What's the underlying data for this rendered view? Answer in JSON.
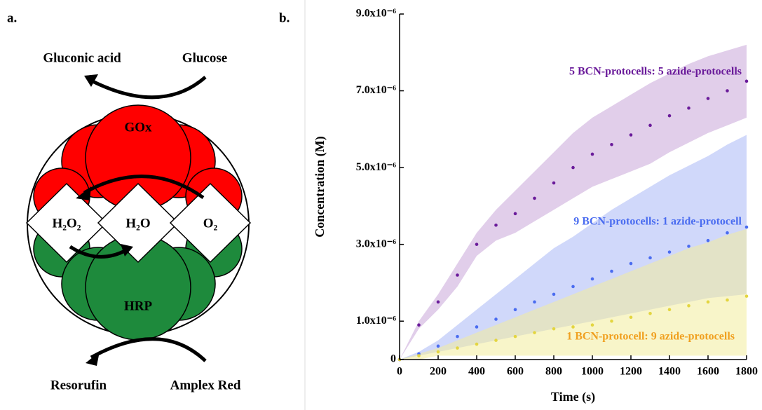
{
  "panel_a": {
    "label": "a.",
    "top_left": "Gluconic acid",
    "top_right": "Glucose",
    "enzyme_top": "GOx",
    "enzyme_bottom": "HRP",
    "species": [
      "H₂O₂",
      "H₂O",
      "O₂"
    ],
    "bottom_left": "Resorufin",
    "bottom_right": "Amplex Red"
  },
  "chart_data": {
    "type": "line",
    "panel_label": "b.",
    "x_label": "Time (s)",
    "y_label": "Concentration (M)",
    "x": [
      0,
      100,
      200,
      300,
      400,
      500,
      600,
      700,
      800,
      900,
      1000,
      1100,
      1200,
      1300,
      1400,
      1500,
      1600,
      1700,
      1800
    ],
    "xlim": [
      0,
      1800
    ],
    "xticks": [
      0,
      200,
      400,
      600,
      800,
      1000,
      1200,
      1400,
      1600,
      1800
    ],
    "ylim": [
      0,
      9e-06
    ],
    "yticks": [
      0,
      {
        "value": 1e-06,
        "label": "1.0x10⁻⁶"
      },
      {
        "value": 3e-06,
        "label": "3.0x10⁻⁶"
      },
      {
        "value": 5e-06,
        "label": "5.0x10⁻⁶"
      },
      {
        "value": 7e-06,
        "label": "7.0x10⁻⁶"
      },
      {
        "value": 9e-06,
        "label": "9.0x10⁻⁶"
      }
    ],
    "series": [
      {
        "name": "5 BCN-protocells: 5 azide-protocells",
        "color": "#6a1b9a",
        "band_color": "#c9a6d8",
        "label_color": "#6a1b9a",
        "values": [
          0,
          9e-07,
          1.5e-06,
          2.2e-06,
          3e-06,
          3.5e-06,
          3.8e-06,
          4.2e-06,
          4.6e-06,
          5e-06,
          5.35e-06,
          5.6e-06,
          5.85e-06,
          6.1e-06,
          6.35e-06,
          6.55e-06,
          6.8e-06,
          7e-06,
          7.25e-06
        ],
        "upper": [
          0,
          1e-06,
          1.7e-06,
          2.5e-06,
          3.3e-06,
          3.9e-06,
          4.4e-06,
          4.9e-06,
          5.4e-06,
          5.9e-06,
          6.3e-06,
          6.6e-06,
          6.9e-06,
          7.2e-06,
          7.45e-06,
          7.7e-06,
          7.9e-06,
          8.05e-06,
          8.2e-06
        ],
        "lower": [
          0,
          8e-07,
          1.3e-06,
          1.9e-06,
          2.7e-06,
          3.1e-06,
          3.3e-06,
          3.6e-06,
          3.9e-06,
          4.2e-06,
          4.5e-06,
          4.7e-06,
          4.9e-06,
          5.1e-06,
          5.4e-06,
          5.65e-06,
          5.9e-06,
          6.1e-06,
          6.3e-06
        ]
      },
      {
        "name": "9 BCN-protocells: 1 azide-protocell",
        "color": "#4a6cf0",
        "band_color": "#aab8f5",
        "label_color": "#4a6cf0",
        "values": [
          0,
          1.5e-07,
          3.5e-07,
          6e-07,
          8.5e-07,
          1.05e-06,
          1.3e-06,
          1.5e-06,
          1.7e-06,
          1.9e-06,
          2.1e-06,
          2.3e-06,
          2.5e-06,
          2.65e-06,
          2.8e-06,
          2.95e-06,
          3.1e-06,
          3.3e-06,
          3.45e-06
        ],
        "upper": [
          0,
          2e-07,
          5e-07,
          9e-07,
          1.3e-06,
          1.7e-06,
          2.1e-06,
          2.5e-06,
          2.9e-06,
          3.2e-06,
          3.55e-06,
          3.9e-06,
          4.2e-06,
          4.5e-06,
          4.8e-06,
          5.05e-06,
          5.3e-06,
          5.6e-06,
          5.85e-06
        ],
        "lower": [
          0,
          1e-07,
          2e-07,
          3e-07,
          4e-07,
          5e-07,
          6e-07,
          7e-07,
          8e-07,
          9e-07,
          1e-06,
          1.1e-06,
          1.2e-06,
          1.3e-06,
          1.4e-06,
          1.5e-06,
          1.6e-06,
          1.65e-06,
          1.7e-06
        ]
      },
      {
        "name": "1 BCN-protocell: 9 azide-protocells",
        "color": "#e3d540",
        "band_color": "#f3ec9c",
        "label_color": "#f0a020",
        "values": [
          0,
          1e-07,
          2e-07,
          3e-07,
          4e-07,
          5e-07,
          6e-07,
          7e-07,
          8e-07,
          8.5e-07,
          9e-07,
          1e-06,
          1.1e-06,
          1.2e-06,
          1.3e-06,
          1.4e-06,
          1.5e-06,
          1.55e-06,
          1.65e-06
        ],
        "upper": [
          0,
          1.5e-07,
          3e-07,
          5e-07,
          7e-07,
          9e-07,
          1.1e-06,
          1.3e-06,
          1.5e-06,
          1.7e-06,
          1.9e-06,
          2.1e-06,
          2.3e-06,
          2.5e-06,
          2.7e-06,
          2.9e-06,
          3.05e-06,
          3.25e-06,
          3.4e-06
        ],
        "lower": [
          0,
          0,
          1e-07,
          1e-07,
          1e-07,
          1e-07,
          1e-07,
          1e-07,
          1e-07,
          1e-07,
          1e-07,
          1e-07,
          1e-07,
          1e-07,
          1e-07,
          1e-07,
          1e-07,
          1e-07,
          1e-07
        ]
      }
    ]
  }
}
